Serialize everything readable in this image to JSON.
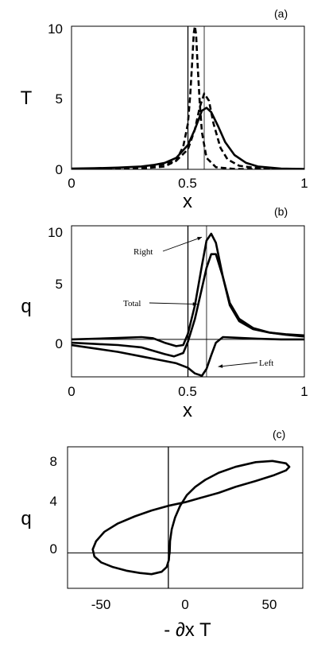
{
  "chart_data": [
    {
      "type": "line",
      "panel_label": "(a)",
      "xlabel": "x",
      "ylabel": "T",
      "xlim": [
        0,
        1
      ],
      "ylim": [
        0,
        10
      ],
      "x_ticks": [
        "0",
        "0.5",
        "1"
      ],
      "y_ticks": [
        "0",
        "5",
        "10"
      ],
      "vertical_lines_x": [
        0.5,
        0.57
      ],
      "series": [
        {
          "style": "solid",
          "x": [
            0,
            0.1,
            0.2,
            0.3,
            0.35,
            0.4,
            0.45,
            0.5,
            0.53,
            0.56,
            0.58,
            0.6,
            0.63,
            0.66,
            0.7,
            0.75,
            0.8,
            0.9,
            1.0
          ],
          "y": [
            0.05,
            0.08,
            0.12,
            0.2,
            0.3,
            0.45,
            0.8,
            1.7,
            2.8,
            4.1,
            4.3,
            4.0,
            3.0,
            1.9,
            1.0,
            0.45,
            0.2,
            0.05,
            0.02
          ]
        },
        {
          "style": "dashed",
          "x": [
            0,
            0.1,
            0.2,
            0.3,
            0.4,
            0.45,
            0.5,
            0.53,
            0.55,
            0.57,
            0.59,
            0.61,
            0.64,
            0.67,
            0.72,
            0.8,
            0.9,
            1.0
          ],
          "y": [
            0.02,
            0.05,
            0.08,
            0.15,
            0.35,
            0.6,
            1.4,
            2.8,
            4.3,
            5.3,
            4.8,
            3.2,
            1.5,
            0.7,
            0.25,
            0.08,
            0.03,
            0.01
          ]
        },
        {
          "style": "dashed",
          "x": [
            0,
            0.2,
            0.3,
            0.4,
            0.45,
            0.48,
            0.5,
            0.51,
            0.52,
            0.525,
            0.53,
            0.535,
            0.54,
            0.55,
            0.56,
            0.58,
            0.62,
            0.7,
            0.8,
            1.0
          ],
          "y": [
            0,
            0.02,
            0.06,
            0.2,
            0.6,
            1.6,
            3.2,
            5.2,
            8.0,
            9.5,
            10.0,
            9.4,
            7.8,
            4.8,
            2.6,
            0.8,
            0.15,
            0.03,
            0.01,
            0
          ]
        }
      ]
    },
    {
      "type": "line",
      "panel_label": "(b)",
      "xlabel": "x",
      "ylabel": "q",
      "xlim": [
        0,
        1
      ],
      "ylim": [
        -3.3,
        10
      ],
      "x_ticks": [
        "0",
        "0.5",
        "1"
      ],
      "y_ticks": [
        "0",
        "5",
        "10"
      ],
      "vertical_lines_x": [
        0.5,
        0.58
      ],
      "horizontal_line_y": 0,
      "annotations": [
        {
          "text": "Right",
          "target": [
            0.56,
            9.0
          ]
        },
        {
          "text": "Total",
          "target": [
            0.54,
            3.1
          ]
        },
        {
          "text": "Left",
          "target": [
            0.63,
            -2.4
          ]
        }
      ],
      "series": [
        {
          "name": "Right",
          "x": [
            0,
            0.1,
            0.2,
            0.3,
            0.35,
            0.4,
            0.45,
            0.48,
            0.5,
            0.53,
            0.56,
            0.58,
            0.6,
            0.62,
            0.65,
            0.68,
            0.72,
            0.78,
            0.85,
            0.92,
            1.0
          ],
          "y": [
            0,
            0.05,
            0.12,
            0.2,
            0.1,
            -0.3,
            -0.6,
            -0.5,
            0.5,
            3.0,
            6.5,
            8.7,
            9.3,
            8.5,
            5.5,
            3.0,
            1.6,
            0.9,
            0.6,
            0.45,
            0.35
          ]
        },
        {
          "name": "Total",
          "x": [
            0,
            0.1,
            0.2,
            0.3,
            0.35,
            0.4,
            0.44,
            0.48,
            0.5,
            0.53,
            0.56,
            0.58,
            0.6,
            0.62,
            0.65,
            0.68,
            0.72,
            0.78,
            0.85,
            0.92,
            1.0
          ],
          "y": [
            -0.3,
            -0.4,
            -0.5,
            -0.7,
            -1.0,
            -1.3,
            -1.5,
            -1.2,
            -0.2,
            1.8,
            4.5,
            6.3,
            7.5,
            7.5,
            5.5,
            3.2,
            1.8,
            1.0,
            0.6,
            0.4,
            0.25
          ]
        },
        {
          "name": "Left",
          "x": [
            0,
            0.1,
            0.2,
            0.3,
            0.4,
            0.45,
            0.5,
            0.53,
            0.56,
            0.58,
            0.6,
            0.62,
            0.65,
            0.7,
            0.8,
            0.9,
            1.0
          ],
          "y": [
            -0.5,
            -0.8,
            -1.1,
            -1.5,
            -1.9,
            -2.1,
            -2.5,
            -3.0,
            -3.2,
            -2.6,
            -1.4,
            -0.3,
            0.2,
            0.15,
            0.05,
            0.0,
            0.0
          ]
        }
      ]
    },
    {
      "type": "line",
      "panel_label": "(c)",
      "xlabel": "- ∂x T",
      "ylabel": "q",
      "xlim": [
        -60,
        80
      ],
      "ylim": [
        -3,
        9
      ],
      "x_ticks": [
        "-50",
        "0",
        "50"
      ],
      "y_ticks": [
        "0",
        "4",
        "8"
      ],
      "vertical_line_x": 0,
      "horizontal_line_y": 0,
      "series": [
        {
          "style": "solid",
          "x": [
            0.8,
            1,
            2,
            4,
            7,
            11,
            16,
            22,
            30,
            40,
            52,
            62,
            70,
            72,
            70,
            63,
            52,
            40,
            30,
            20,
            10,
            0,
            -10,
            -20,
            -30,
            -38,
            -43,
            -45,
            -44,
            -40,
            -33,
            -25,
            -17,
            -10,
            -4,
            -1,
            0.3,
            0.5,
            0.8
          ],
          "y": [
            0,
            1.0,
            2.0,
            3.0,
            4.0,
            4.9,
            5.6,
            6.2,
            6.8,
            7.3,
            7.7,
            7.8,
            7.6,
            7.3,
            7.0,
            6.6,
            6.1,
            5.6,
            5.1,
            4.7,
            4.3,
            4.0,
            3.6,
            3.1,
            2.5,
            1.8,
            1.0,
            0.3,
            -0.3,
            -0.8,
            -1.2,
            -1.5,
            -1.7,
            -1.8,
            -1.6,
            -1.2,
            -0.6,
            -0.2,
            0
          ]
        }
      ]
    }
  ]
}
